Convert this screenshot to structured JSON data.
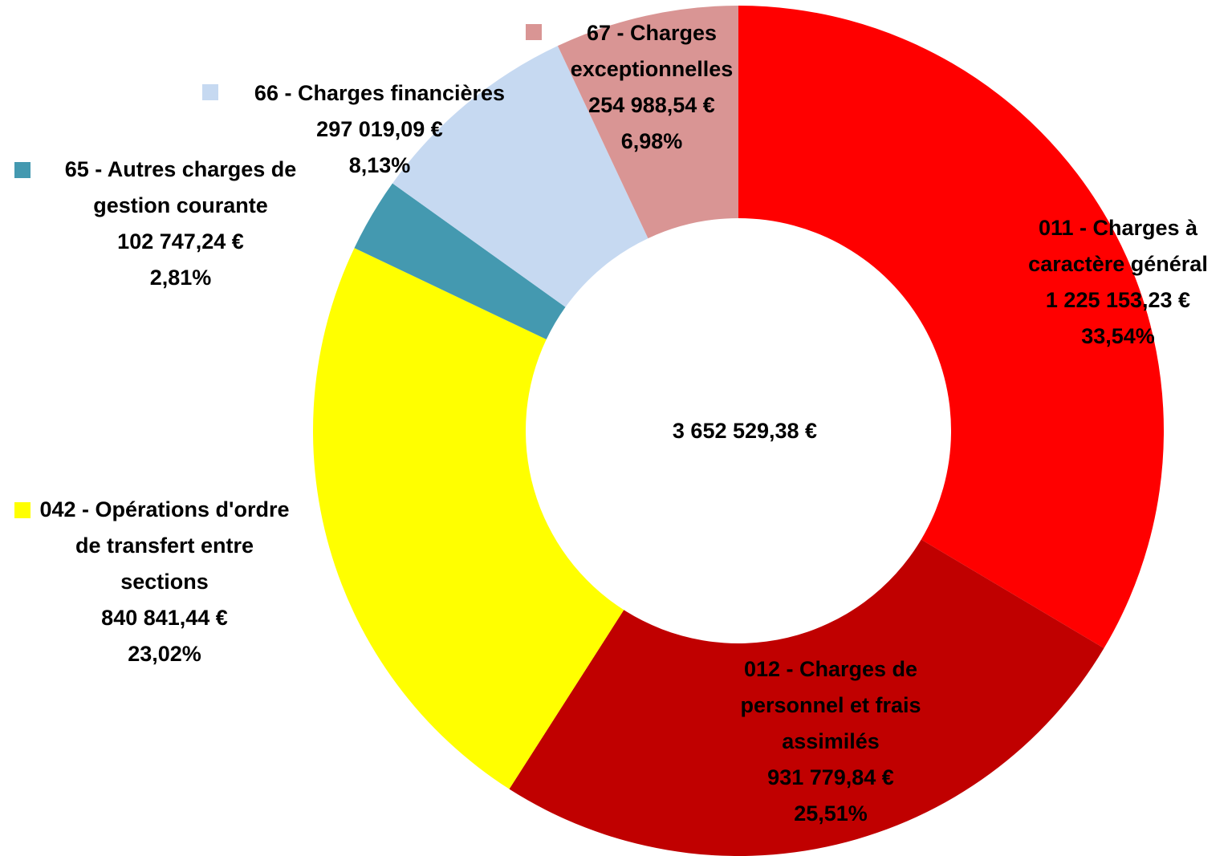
{
  "chart_data": {
    "type": "donut",
    "categories": [
      "011 - Charges à caractère général",
      "012 - Charges de personnel et frais assimilés",
      "042 - Opérations d'ordre de transfert entre sections",
      "65 - Autres charges de gestion courante",
      "66 - Charges financières",
      "67 - Charges exceptionnelles"
    ],
    "values": [
      1225153.23,
      931779.84,
      840841.44,
      102747.24,
      297019.09,
      254988.54
    ],
    "value_labels": [
      "1 225 153,23 €",
      "931 779,84 €",
      "840 841,44 €",
      "102 747,24 €",
      "297 019,09 €",
      "254 988,54 €"
    ],
    "percentages": [
      33.54,
      25.51,
      23.02,
      2.81,
      8.13,
      6.98
    ],
    "percentage_labels": [
      "33,54%",
      "25,51%",
      "23,02%",
      "2,81%",
      "8,13%",
      "6,98%"
    ],
    "colors": [
      "#ff0000",
      "#c00000",
      "#ffff00",
      "#4499b0",
      "#c6d9f1",
      "#d99594"
    ],
    "legend_keys": [
      false,
      false,
      true,
      true,
      true,
      true
    ],
    "total": 3652529.38,
    "total_label": "3 652 529,38 €"
  }
}
